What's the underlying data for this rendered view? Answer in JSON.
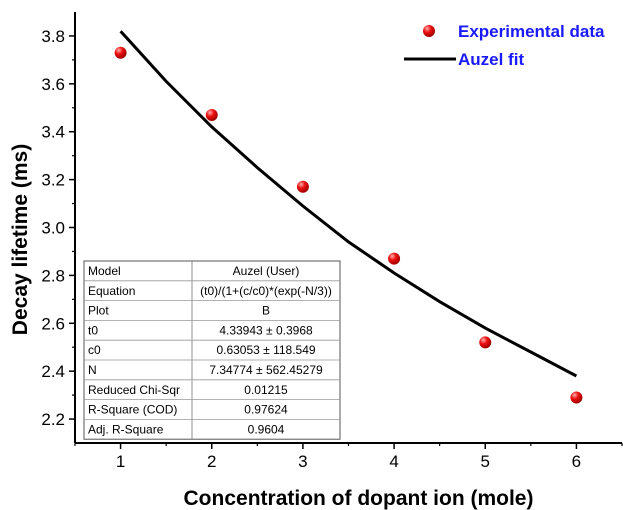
{
  "chart_data": {
    "type": "scatter",
    "xlabel": "Concentration of dopant ion (mole)",
    "ylabel": "Decay lifetime (ms)",
    "xlim": [
      0.5,
      6.5
    ],
    "ylim": [
      2.1,
      3.9
    ],
    "x_ticks": [
      1,
      2,
      3,
      4,
      5,
      6
    ],
    "y_ticks": [
      2.2,
      2.4,
      2.6,
      2.8,
      3.0,
      3.2,
      3.4,
      3.6,
      3.8
    ],
    "x_tick_labels": [
      "1",
      "2",
      "3",
      "4",
      "5",
      "6"
    ],
    "y_tick_labels": [
      "2.2",
      "2.4",
      "2.6",
      "2.8",
      "3.0",
      "3.2",
      "3.4",
      "3.6",
      "3.8"
    ],
    "grid": false,
    "legend_position": "top-right",
    "series": [
      {
        "name": "Experimental data",
        "kind": "scatter",
        "color": "#e00000",
        "x": [
          1,
          2,
          3,
          4,
          5,
          6
        ],
        "y": [
          3.73,
          3.47,
          3.17,
          2.87,
          2.52,
          2.29
        ]
      },
      {
        "name": "Auzel fit",
        "kind": "line",
        "color": "#000000",
        "x": [
          1,
          1.5,
          2,
          2.5,
          3,
          3.5,
          4,
          4.5,
          5,
          5.5,
          6
        ],
        "y": [
          3.82,
          3.61,
          3.42,
          3.25,
          3.09,
          2.94,
          2.81,
          2.69,
          2.58,
          2.48,
          2.38
        ]
      }
    ],
    "stats_table": [
      [
        "Model",
        "Auzel (User)"
      ],
      [
        "Equation",
        "(t0)/(1+(c/c0)*(exp(-N/3))"
      ],
      [
        "Plot",
        "B"
      ],
      [
        "t0",
        "4.33943 ± 0.3968"
      ],
      [
        "c0",
        "0.63053 ± 118.549"
      ],
      [
        "N",
        "7.34774 ± 562.45279"
      ],
      [
        "Reduced Chi-Sqr",
        "0.01215"
      ],
      [
        "R-Square (COD)",
        "0.97624"
      ],
      [
        "Adj. R-Square",
        "0.9604"
      ]
    ]
  }
}
